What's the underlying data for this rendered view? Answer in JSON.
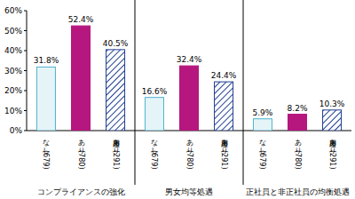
{
  "chart_data": {
    "type": "bar",
    "categories": [
      "コンプライアンスの強化",
      "男女均等処遇",
      "正社員と非正社員の均衡処遇"
    ],
    "series": [
      {
        "name": "なし(679)",
        "color": "#4fb3cc",
        "values": [
          31.8,
          16.6,
          5.9
        ],
        "value_labels": [
          "31.8%",
          "16.6%",
          "5.9%"
        ]
      },
      {
        "name": "あり(780)",
        "color": "#b5177f",
        "values": [
          52.4,
          32.4,
          8.2
        ],
        "value_labels": [
          "52.4%",
          "32.4%",
          "8.2%"
        ]
      },
      {
        "name": "運用あり(291)",
        "color": "#1f3f8f",
        "values": [
          40.5,
          24.4,
          10.3
        ],
        "value_labels": [
          "40.5%",
          "24.4%",
          "10.3%"
        ]
      }
    ],
    "ylim": [
      0,
      60
    ],
    "yticks": [
      {
        "value": 0,
        "label": "0%"
      },
      {
        "value": 10,
        "label": "10%"
      },
      {
        "value": 20,
        "label": "20%"
      },
      {
        "value": 30,
        "label": "30%"
      },
      {
        "value": 40,
        "label": "40%"
      },
      {
        "value": 50,
        "label": "50%"
      },
      {
        "value": 60,
        "label": "60%"
      }
    ],
    "grid": false,
    "data_labels": true
  }
}
